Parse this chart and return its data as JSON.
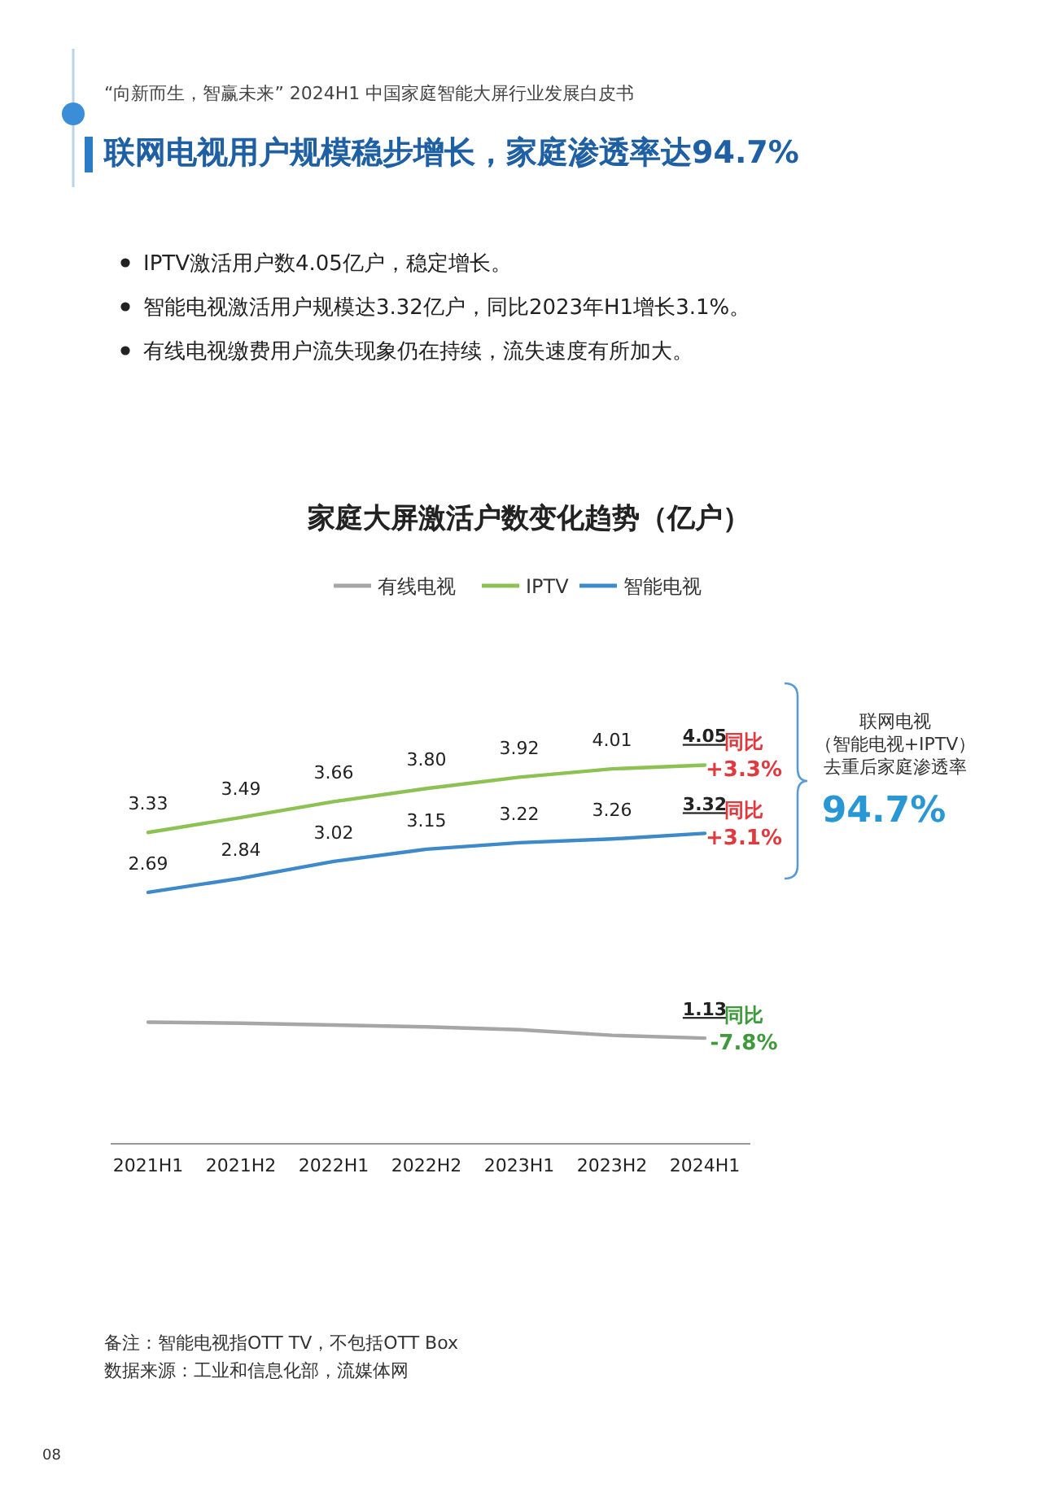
{
  "chart_data": {
    "type": "line",
    "title": "家庭大屏激活户数变化趋势（亿户）",
    "categories": [
      "2021H1",
      "2021H2",
      "2022H1",
      "2022H2",
      "2023H1",
      "2023H2",
      "2024H1"
    ],
    "series": [
      {
        "name": "有线电视",
        "color": "#a6a6a6",
        "values": [
          1.3,
          1.29,
          1.27,
          1.25,
          1.22,
          1.16,
          1.13
        ],
        "value_labels": [
          null,
          null,
          null,
          null,
          null,
          null,
          "1.13"
        ]
      },
      {
        "name": "IPTV",
        "color": "#8dc153",
        "values": [
          3.33,
          3.49,
          3.66,
          3.8,
          3.92,
          4.01,
          4.05
        ],
        "value_labels": [
          "3.33",
          "3.49",
          "3.66",
          "3.80",
          "3.92",
          "4.01",
          "4.05"
        ]
      },
      {
        "name": "智能电视",
        "color": "#3d89c9",
        "values": [
          2.69,
          2.84,
          3.02,
          3.15,
          3.22,
          3.26,
          3.32
        ],
        "value_labels": [
          "2.69",
          "2.84",
          "3.02",
          "3.15",
          "3.22",
          "3.26",
          "3.32"
        ]
      }
    ],
    "legend": "top",
    "tick_labels": "x",
    "annotations": [
      "“向新而生，智赢未来”  2024H1 中国家庭智能大屏行业发展白皮书",
      "联网电视用户规模稳步增长，家庭渗透率达94.7%",
      "IPTV激活用户数4.05亿户，稳定增长。",
      "智能电视激活用户规模达3.32亿户，同比2023年H1增长3.1%。",
      "有线电视缴费用户流失现象仍在持续，流失速度有所加大。",
      {
        "text": "同比",
        "x": "2024H1",
        "y": 4.05
      },
      {
        "text": "+3.3%",
        "x": "2024H1",
        "y": 4.05
      },
      {
        "text": "同比",
        "x": "2024H1",
        "y": 3.32
      },
      {
        "text": "+3.1%",
        "x": "2024H1",
        "y": 3.32
      },
      {
        "text": "同比",
        "x": "2024H1",
        "y": 1.13
      },
      {
        "text": "-7.8%",
        "x": "2024H1",
        "y": 1.13
      },
      "联网电视",
      "（智能电视+IPTV）",
      "去重后家庭渗透率",
      "94.7%",
      "备注：智能电视指OTT TV，不包括OTT Box",
      "数据来源：工业和信息化部，流媒体网",
      "08"
    ]
  }
}
